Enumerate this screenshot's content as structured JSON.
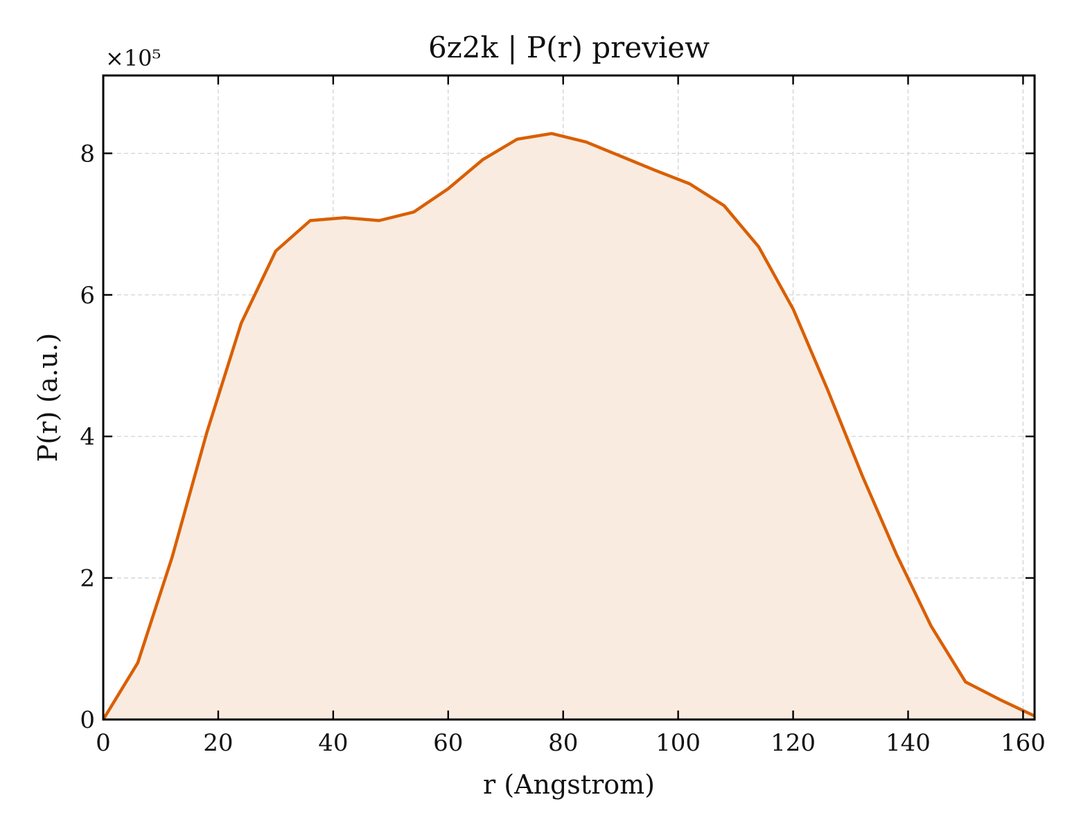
{
  "chart_data": {
    "type": "area",
    "title": "6z2k | P(r) preview",
    "xlabel": "r (Angstrom)",
    "ylabel": "P(r) (a.u.)",
    "y_multiplier": "×10⁵",
    "xlim": [
      0,
      162
    ],
    "ylim": [
      0,
      9.1
    ],
    "x_ticks": [
      0,
      20,
      40,
      60,
      80,
      100,
      120,
      140,
      160
    ],
    "y_ticks": [
      0,
      2,
      4,
      6,
      8
    ],
    "x_tick_labels": [
      "0",
      "20",
      "40",
      "60",
      "80",
      "100",
      "120",
      "140",
      "160"
    ],
    "y_tick_labels": [
      "0",
      "2",
      "4",
      "6",
      "8"
    ],
    "grid": true,
    "line_color": "#d95f02",
    "fill_color": "#f9ebe0",
    "series": [
      {
        "x": [
          0,
          6,
          12,
          18,
          24,
          30,
          36,
          42,
          48,
          54,
          60,
          66,
          72,
          78,
          84,
          90,
          96,
          102,
          108,
          114,
          120,
          126,
          132,
          138,
          144,
          150,
          156,
          162
        ],
        "values": [
          0.0,
          0.8,
          2.3,
          4.05,
          5.6,
          6.62,
          7.05,
          7.09,
          7.05,
          7.17,
          7.5,
          7.91,
          8.2,
          8.28,
          8.16,
          7.96,
          7.76,
          7.57,
          7.26,
          6.68,
          5.8,
          4.66,
          3.45,
          2.33,
          1.32,
          0.53,
          0.28,
          0.05
        ]
      }
    ]
  }
}
